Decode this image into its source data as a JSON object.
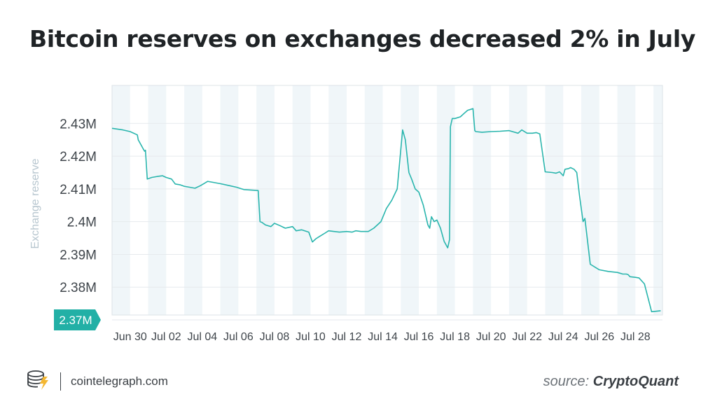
{
  "title": "Bitcoin reserves on exchanges decreased 2% in July",
  "footer": {
    "site": "cointelegraph.com",
    "source_prefix": "source:",
    "source_name": "CryptoQuant"
  },
  "colors": {
    "line": "#29b5ad",
    "band": "#f0f6f9",
    "grid": "#e6eaed",
    "badge": "#22b0a6",
    "axis_text": "#3f454b",
    "ylabel_text": "#b7c6cf"
  },
  "chart_data": {
    "type": "line",
    "title": "",
    "xlabel": "",
    "ylabel": "Exchange reserve",
    "x_unit": "days since Jun 29",
    "xlim": [
      0.0,
      30.5
    ],
    "ylim": [
      2.3715,
      2.4416
    ],
    "yticks": [
      2.37,
      2.38,
      2.39,
      2.4,
      2.41,
      2.42,
      2.43
    ],
    "ytick_labels": [
      "2.37M",
      "2.38M",
      "2.39M",
      "2.4M",
      "2.41M",
      "2.42M",
      "2.43M"
    ],
    "highlight_tick": "2.37M",
    "xticks": [
      1,
      3,
      5,
      7,
      9,
      11,
      13,
      15,
      17,
      19,
      21,
      23,
      25,
      27,
      29
    ],
    "xtick_labels": [
      "Jun 30",
      "Jul 02",
      "Jul 04",
      "Jul 06",
      "Jul 08",
      "Jul 10",
      "Jul 12",
      "Jul 14",
      "Jul 16",
      "Jul 18",
      "Jul 20",
      "Jul 22",
      "Jul 24",
      "Jul 26",
      "Jul 28"
    ],
    "grid": true,
    "series": [
      {
        "name": "Exchange reserve",
        "x": [
          0.0,
          0.6,
          1.0,
          1.4,
          1.45,
          1.7,
          1.8,
          1.85,
          1.95,
          2.2,
          2.5,
          2.8,
          3.0,
          3.3,
          3.5,
          3.8,
          4.0,
          4.3,
          4.6,
          4.9,
          5.3,
          5.6,
          6.0,
          6.5,
          6.9,
          7.3,
          8.1,
          8.2,
          8.3,
          8.5,
          8.8,
          9.0,
          9.3,
          9.6,
          10.0,
          10.2,
          10.5,
          10.9,
          11.1,
          11.3,
          11.5,
          11.8,
          12.0,
          12.3,
          12.6,
          13.0,
          13.3,
          13.5,
          13.8,
          14.2,
          14.5,
          14.9,
          15.2,
          15.5,
          15.8,
          16.1,
          16.25,
          16.45,
          16.6,
          16.8,
          17.0,
          17.25,
          17.5,
          17.6,
          17.7,
          17.85,
          18.0,
          18.2,
          18.4,
          18.6,
          18.7,
          18.75,
          18.85,
          19.0,
          19.3,
          19.5,
          19.7,
          20.0,
          20.1,
          20.15,
          20.5,
          21.0,
          21.5,
          22.0,
          22.5,
          22.7,
          23.0,
          23.3,
          23.5,
          23.7,
          24.0,
          24.4,
          24.6,
          24.8,
          25.0,
          25.1,
          25.3,
          25.4,
          25.6,
          25.75,
          25.9,
          26.1,
          26.2,
          26.5,
          27.0,
          27.5,
          28.0,
          28.3,
          28.5,
          28.6,
          28.7,
          29.0,
          29.2,
          29.5,
          29.9,
          30.4
        ],
        "y": [
          2.4285,
          2.428,
          2.4275,
          2.4265,
          2.425,
          2.4225,
          2.4215,
          2.4218,
          2.413,
          2.4135,
          2.4138,
          2.414,
          2.4135,
          2.413,
          2.4115,
          2.4112,
          2.4108,
          2.4105,
          2.4102,
          2.411,
          2.4123,
          2.412,
          2.4116,
          2.411,
          2.4105,
          2.4098,
          2.4095,
          2.4,
          2.3998,
          2.399,
          2.3985,
          2.3995,
          2.3988,
          2.398,
          2.3985,
          2.3972,
          2.3975,
          2.3968,
          2.3938,
          2.3948,
          2.3955,
          2.3965,
          2.3972,
          2.397,
          2.3968,
          2.397,
          2.3968,
          2.3972,
          2.397,
          2.397,
          2.398,
          2.4,
          2.404,
          2.4065,
          2.41,
          2.428,
          2.425,
          2.415,
          2.413,
          2.41,
          2.409,
          2.405,
          2.399,
          2.398,
          2.4015,
          2.4,
          2.4005,
          2.398,
          2.394,
          2.392,
          2.3945,
          2.429,
          2.4315,
          2.4315,
          2.432,
          2.433,
          2.434,
          2.4345,
          2.4278,
          2.4275,
          2.4273,
          2.4275,
          2.4276,
          2.4278,
          2.427,
          2.428,
          2.427,
          2.427,
          2.4272,
          2.4268,
          2.4152,
          2.415,
          2.4148,
          2.4152,
          2.414,
          2.416,
          2.4162,
          2.4165,
          2.416,
          2.415,
          2.408,
          2.4,
          2.401,
          2.387,
          2.3853,
          2.3848,
          2.3845,
          2.384,
          2.384,
          2.3838,
          2.3832,
          2.383,
          2.3828,
          2.381,
          2.3725,
          2.3728
        ]
      }
    ]
  }
}
